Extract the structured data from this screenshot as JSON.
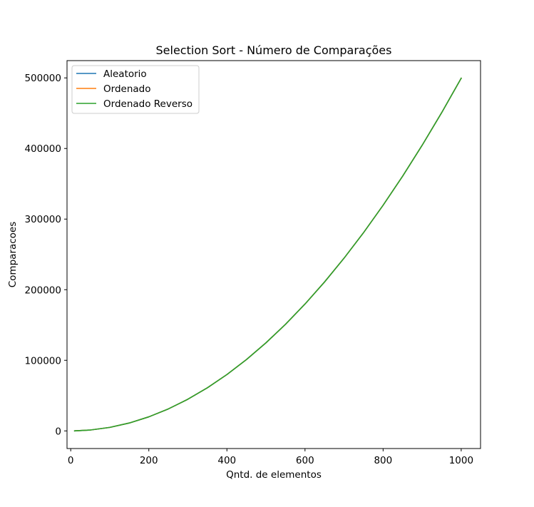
{
  "chart_data": {
    "type": "line",
    "title": "Selection Sort - Número de Comparações",
    "xlabel": "Qntd. de elementos",
    "ylabel": "Comparacoes",
    "xlim": [
      -9.5,
      1049.5
    ],
    "ylim": [
      -24975,
      524475
    ],
    "xticks": [
      0,
      200,
      400,
      600,
      800,
      1000
    ],
    "yticks": [
      0,
      100000,
      200000,
      300000,
      400000,
      500000
    ],
    "legend_position": "top-left",
    "x": [
      10,
      50,
      100,
      150,
      200,
      250,
      300,
      350,
      400,
      450,
      500,
      550,
      600,
      650,
      700,
      750,
      800,
      850,
      900,
      950,
      1000
    ],
    "series": [
      {
        "name": "Aleatorio",
        "color": "#1f77b4",
        "values": [
          45,
          1225,
          4950,
          11175,
          19900,
          31125,
          44850,
          61075,
          79800,
          101025,
          124750,
          150975,
          179700,
          210925,
          244650,
          280875,
          319600,
          360825,
          404550,
          450775,
          499500
        ]
      },
      {
        "name": "Ordenado",
        "color": "#ff7f0e",
        "values": [
          45,
          1225,
          4950,
          11175,
          19900,
          31125,
          44850,
          61075,
          79800,
          101025,
          124750,
          150975,
          179700,
          210925,
          244650,
          280875,
          319600,
          360825,
          404550,
          450775,
          499500
        ]
      },
      {
        "name": "Ordenado Reverso",
        "color": "#2ca02c",
        "values": [
          45,
          1225,
          4950,
          11175,
          19900,
          31125,
          44850,
          61075,
          79800,
          101025,
          124750,
          150975,
          179700,
          210925,
          244650,
          280875,
          319600,
          360825,
          404550,
          450775,
          499500
        ]
      }
    ]
  }
}
